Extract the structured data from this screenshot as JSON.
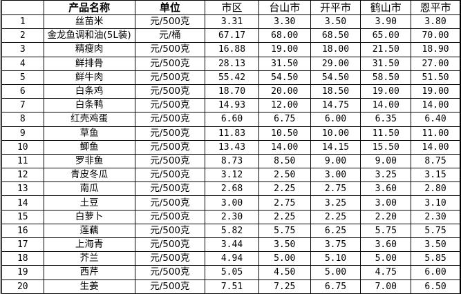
{
  "headers": {
    "index": "",
    "name": "产品名称",
    "unit": "单位",
    "cities": [
      "市区",
      "台山市",
      "开平市",
      "鹤山市",
      "恩平市"
    ],
    "extra": ""
  },
  "rows": [
    {
      "index": "1",
      "name": "丝苗米",
      "unit": "元/500克",
      "prices": [
        "3.31",
        "3.30",
        "3.50",
        "3.90",
        "3.80"
      ]
    },
    {
      "index": "2",
      "name": "金龙鱼调和油(5L装)",
      "unit": "元/桶",
      "prices": [
        "67.17",
        "68.00",
        "68.50",
        "65.00",
        "70.00"
      ]
    },
    {
      "index": "3",
      "name": "精瘦肉",
      "unit": "元/500克",
      "prices": [
        "16.88",
        "19.00",
        "18.00",
        "21.50",
        "18.90"
      ]
    },
    {
      "index": "4",
      "name": "鲜排骨",
      "unit": "元/500克",
      "prices": [
        "28.13",
        "31.50",
        "29.00",
        "31.50",
        "27.00"
      ]
    },
    {
      "index": "5",
      "name": "鲜牛肉",
      "unit": "元/500克",
      "prices": [
        "55.42",
        "54.50",
        "54.50",
        "58.50",
        "51.50"
      ]
    },
    {
      "index": "6",
      "name": "白条鸡",
      "unit": "元/500克",
      "prices": [
        "18.70",
        "20.00",
        "18.50",
        "19.00",
        "19.00"
      ]
    },
    {
      "index": "7",
      "name": "白条鸭",
      "unit": "元/500克",
      "prices": [
        "14.93",
        "12.00",
        "14.75",
        "14.00",
        "14.00"
      ]
    },
    {
      "index": "8",
      "name": "红壳鸡蛋",
      "unit": "元/500克",
      "prices": [
        "6.60",
        "6.75",
        "6.00",
        "6.35",
        "6.40"
      ]
    },
    {
      "index": "9",
      "name": "草鱼",
      "unit": "元/500克",
      "prices": [
        "11.83",
        "10.50",
        "10.00",
        "11.50",
        "11.00"
      ]
    },
    {
      "index": "10",
      "name": "鲫鱼",
      "unit": "元/500克",
      "prices": [
        "13.43",
        "14.00",
        "14.15",
        "15.50",
        "14.00"
      ]
    },
    {
      "index": "11",
      "name": "罗非鱼",
      "unit": "元/500克",
      "prices": [
        "8.73",
        "8.50",
        "9.00",
        "9.00",
        "8.75"
      ]
    },
    {
      "index": "12",
      "name": "青皮冬瓜",
      "unit": "元/500克",
      "prices": [
        "3.12",
        "2.50",
        "3.00",
        "3.25",
        "3.15"
      ]
    },
    {
      "index": "13",
      "name": "南瓜",
      "unit": "元/500克",
      "prices": [
        "2.68",
        "2.25",
        "2.75",
        "3.60",
        "2.80"
      ]
    },
    {
      "index": "14",
      "name": "土豆",
      "unit": "元/500克",
      "prices": [
        "3.00",
        "2.75",
        "3.25",
        "3.00",
        "3.10"
      ]
    },
    {
      "index": "15",
      "name": "白萝卜",
      "unit": "元/500克",
      "prices": [
        "2.30",
        "2.25",
        "2.25",
        "2.20",
        "2.30"
      ]
    },
    {
      "index": "16",
      "name": "莲藕",
      "unit": "元/500克",
      "prices": [
        "5.82",
        "5.75",
        "6.25",
        "5.75",
        "5.75"
      ]
    },
    {
      "index": "17",
      "name": "上海青",
      "unit": "元/500克",
      "prices": [
        "3.44",
        "3.50",
        "3.75",
        "3.60",
        "3.50"
      ]
    },
    {
      "index": "18",
      "name": "芥兰",
      "unit": "元/500克",
      "prices": [
        "4.94",
        "5.00",
        "5.10",
        "5.00",
        "5.85"
      ]
    },
    {
      "index": "19",
      "name": "西芹",
      "unit": "元/500克",
      "prices": [
        "5.05",
        "4.50",
        "5.00",
        "4.75",
        "6.00"
      ]
    },
    {
      "index": "20",
      "name": "生姜",
      "unit": "元/500克",
      "prices": [
        "7.51",
        "7.25",
        "6.75",
        "7.00",
        "6.50"
      ]
    }
  ]
}
